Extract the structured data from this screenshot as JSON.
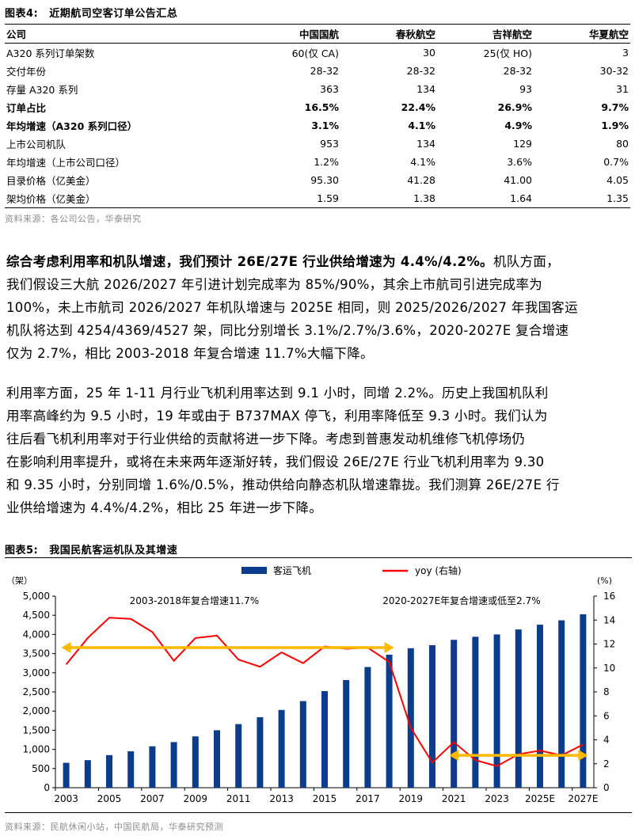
{
  "table_title": {
    "num": "图表4:",
    "text": "近期航司空客订单公告汇总"
  },
  "table": {
    "headers": [
      "公司",
      "中国国航",
      "春秋航空",
      "吉祥航空",
      "华夏航空"
    ],
    "rows": [
      {
        "label": "A320 系列订单架数",
        "values": [
          "60(仅 CA)",
          "30",
          "25(仅 HO)",
          "3"
        ],
        "bold": false
      },
      {
        "label": "交付年份",
        "values": [
          "28-32",
          "28-32",
          "28-32",
          "30-32"
        ],
        "bold": false
      },
      {
        "label": "存量 A320 系列",
        "values": [
          "363",
          "134",
          "93",
          "31"
        ],
        "bold": false
      },
      {
        "label": "订单占比",
        "values": [
          "16.5%",
          "22.4%",
          "26.9%",
          "9.7%"
        ],
        "bold": true
      },
      {
        "label": "年均增速（A320 系列口径）",
        "values": [
          "3.1%",
          "4.1%",
          "4.9%",
          "1.9%"
        ],
        "bold": true
      },
      {
        "label": "上市公司机队",
        "values": [
          "953",
          "134",
          "129",
          "80"
        ],
        "bold": false
      },
      {
        "label": "年均增速（上市公司口径）",
        "values": [
          "1.2%",
          "4.1%",
          "3.6%",
          "0.7%"
        ],
        "bold": false
      },
      {
        "label": "目录价格（亿美金）",
        "values": [
          "95.30",
          "41.28",
          "41.00",
          "4.05"
        ],
        "bold": false
      },
      {
        "label": "架均价格（亿美金）",
        "values": [
          "1.59",
          "1.38",
          "1.64",
          "1.35"
        ],
        "bold": false
      }
    ],
    "source": "资料来源：各公司公告，华泰研究"
  },
  "para1": {
    "l1_bold": "综合考虑利用率和机队增速，我们预计 26E/27E 行业供给增速为 4.4%/4.2%。",
    "l1_rest": "机队方面，",
    "l2": "我们假设三大航 2026/2027 年引进计划完成率为 85%/90%，其余上市航司引进完成率为",
    "l3": "100%，未上市航司 2026/2027 年机队增速与 2025E 相同，则 2025/2026/2027 年我国客运",
    "l4": "机队将达到 4254/4369/4527 架，同比分别增长 3.1%/2.7%/3.6%，2020-2027E 复合增速",
    "l5": "仅为 2.7%，相比 2003-2018 年复合增速 11.7%大幅下降。"
  },
  "para2": {
    "l1": "利用率方面，25 年 1-11 月行业飞机利用率达到 9.1 小时，同增 2.2%。历史上我国机队利",
    "l2": "用率高峰约为 9.5 小时，19 年或由于 B737MAX 停飞，利用率降低至 9.3 小时。我们认为",
    "l3": "往后看飞机利用率对于行业供给的贡献将进一步下降。考虑到普惠发动机维修飞机停场仍",
    "l4": "在影响利用率提升，或将在未来两年逐渐好转，我们假设 26E/27E 行业飞机利用率为 9.30",
    "l5": "和 9.35 小时，分别同增 1.6%/0.5%，推动供给向静态机队增速靠拢。我们测算 26E/27E 行",
    "l6": "业供给增速为 4.4%/4.2%，相比 25 年进一步下降。"
  },
  "chart_title": {
    "num": "图表5:",
    "text": "我国民航客运机队及其增速"
  },
  "chart_source": "资料来源：民航休闲小站，中国民航局，华泰研究预测",
  "colors": {
    "bar": "#0b3d8c",
    "line": "#ff0000",
    "arrow": "#ffb800"
  },
  "chart_data": {
    "type": "bar+line",
    "x": [
      "2003",
      "2004",
      "2005",
      "2006",
      "2007",
      "2008",
      "2009",
      "2010",
      "2011",
      "2012",
      "2013",
      "2014",
      "2015",
      "2016",
      "2017",
      "2018",
      "2019",
      "2020",
      "2021",
      "2022",
      "2023",
      "2024",
      "2025E",
      "2026E",
      "2027E"
    ],
    "xtick_labels": [
      "2003",
      "2005",
      "2007",
      "2009",
      "2011",
      "2013",
      "2015",
      "2017",
      "2019",
      "2021",
      "2023",
      "2025E",
      "2027E"
    ],
    "series": [
      {
        "name": "客运飞机",
        "type": "bar",
        "axis": "left",
        "values": [
          650,
          720,
          850,
          950,
          1080,
          1190,
          1340,
          1500,
          1660,
          1840,
          2030,
          2260,
          2520,
          2810,
          3150,
          3470,
          3640,
          3720,
          3860,
          3940,
          4000,
          4130,
          4254,
          4369,
          4527
        ]
      },
      {
        "name": "yoy (右轴)",
        "type": "line",
        "axis": "right",
        "values": [
          10.3,
          12.5,
          14.2,
          14.1,
          13.0,
          10.6,
          12.5,
          12.7,
          10.7,
          10.1,
          11.3,
          10.4,
          11.8,
          11.6,
          11.7,
          10.5,
          5.0,
          2.1,
          3.8,
          2.3,
          1.8,
          2.8,
          3.1,
          2.7,
          3.6
        ]
      }
    ],
    "ylabel_left": "（架）",
    "ylabel_right": "(%)",
    "ylim_left": [
      0,
      5000
    ],
    "ylim_right": [
      0,
      16
    ],
    "yticks_left": [
      "0",
      "500",
      "1,000",
      "1,500",
      "2,000",
      "2,500",
      "3,000",
      "3,500",
      "4,000",
      "4,500",
      "5,000"
    ],
    "yticks_right": [
      "0",
      "2",
      "4",
      "6",
      "8",
      "10",
      "12",
      "14",
      "16"
    ],
    "annotations": [
      {
        "text": "2003-2018年复合增速11.7%",
        "from": "2003",
        "to": "2018",
        "level": 11.7
      },
      {
        "text": "2020-2027E年复合增速或低至2.7%",
        "from": "2021",
        "to": "2027E",
        "level": 2.7
      }
    ],
    "legend_position": "top",
    "grid": false
  }
}
